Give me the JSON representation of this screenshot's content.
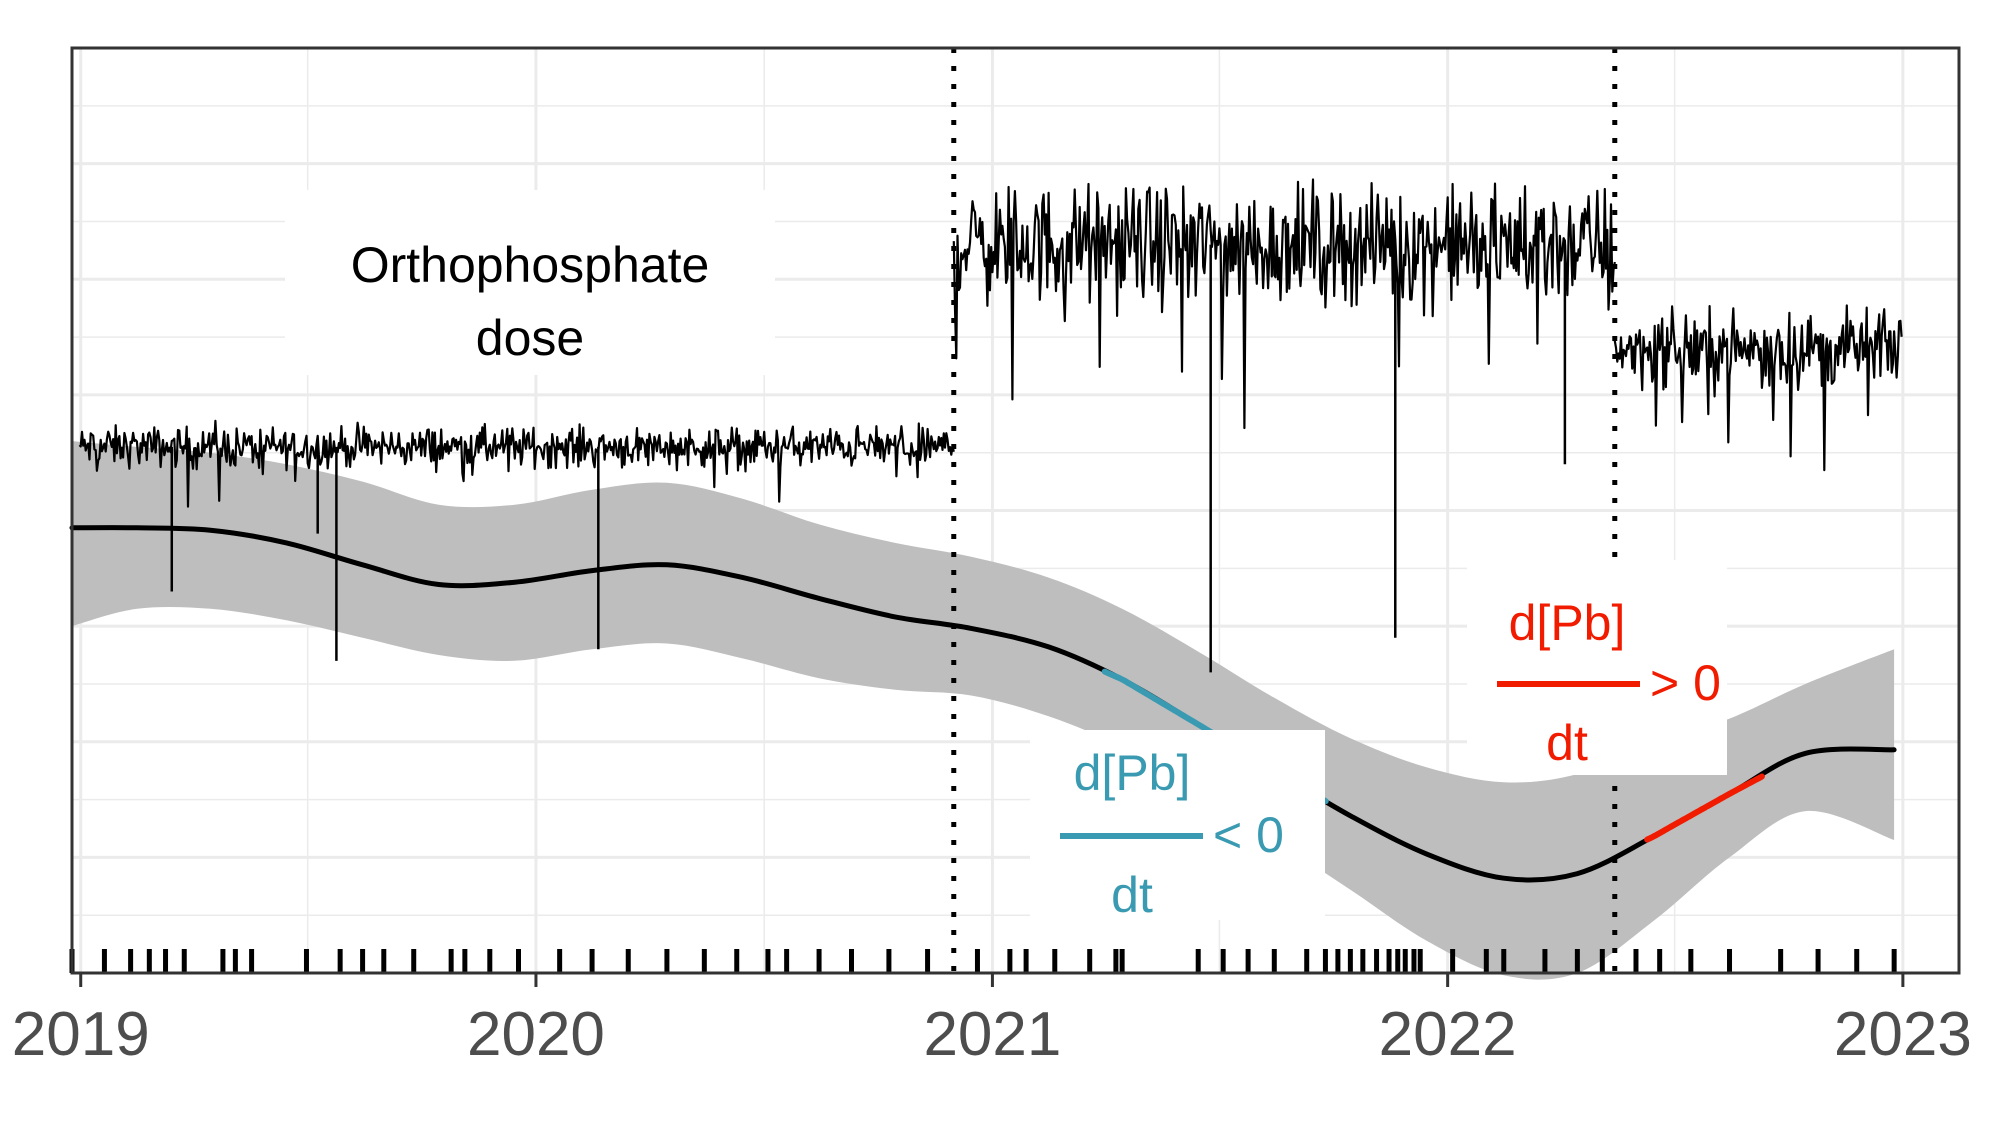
{
  "chart_data": {
    "type": "line",
    "title": "",
    "xlabel": "",
    "ylabel": "",
    "x_ticks": [
      "2019",
      "2020",
      "2021",
      "2022",
      "2023"
    ],
    "xlim": [
      "2018-12-25",
      "2023-02-15"
    ],
    "ylim": [
      0,
      8
    ],
    "grid": true,
    "colors": {
      "raw": "#000000",
      "smooth": "#000000",
      "ribbon": "#bebebe",
      "decreasing": "#3a9ab2",
      "increasing": "#f11b00",
      "vline": "#000000"
    },
    "vlines": [
      "2020-12-01",
      "2022-05-15"
    ],
    "orthophosphate_segments": [
      {
        "start": "2018-12-31",
        "end": "2020-12-01",
        "mean": 4.55,
        "sd": 0.12
      },
      {
        "start": "2020-12-01",
        "end": "2022-05-15",
        "mean": 6.3,
        "sd": 0.35
      },
      {
        "start": "2022-05-15",
        "end": "2022-12-31",
        "mean": 5.4,
        "sd": 0.22
      }
    ],
    "orthophosphate_dips": [
      {
        "date": "2019-03-15",
        "value": 3.3
      },
      {
        "date": "2019-07-10",
        "value": 3.8
      },
      {
        "date": "2019-07-25",
        "value": 2.7
      },
      {
        "date": "2020-02-20",
        "value": 2.8
      },
      {
        "date": "2021-06-25",
        "value": 2.6
      },
      {
        "date": "2021-11-20",
        "value": 2.9
      },
      {
        "date": "2022-04-05",
        "value": 4.4
      }
    ],
    "smooth": {
      "x": [
        "2018-12-25",
        "2019-02-15",
        "2019-04-15",
        "2019-06-15",
        "2019-08-15",
        "2019-10-15",
        "2019-12-15",
        "2020-02-15",
        "2020-04-15",
        "2020-06-15",
        "2020-08-15",
        "2020-10-15",
        "2020-12-15",
        "2021-02-15",
        "2021-04-15",
        "2021-06-15",
        "2021-08-15",
        "2021-10-15",
        "2021-12-15",
        "2022-02-15",
        "2022-04-15",
        "2022-06-15",
        "2022-08-15",
        "2022-10-15",
        "2022-12-25"
      ],
      "y": [
        3.85,
        3.85,
        3.83,
        3.72,
        3.53,
        3.36,
        3.38,
        3.48,
        3.53,
        3.42,
        3.24,
        3.08,
        2.98,
        2.82,
        2.54,
        2.15,
        1.75,
        1.36,
        1.03,
        0.82,
        0.86,
        1.18,
        1.55,
        1.9,
        1.93
      ],
      "lower": [
        3.0,
        3.15,
        3.15,
        3.05,
        2.9,
        2.75,
        2.7,
        2.8,
        2.85,
        2.72,
        2.55,
        2.45,
        2.4,
        2.22,
        1.95,
        1.55,
        1.15,
        0.72,
        0.28,
        -0.02,
        0.0,
        0.45,
        1.0,
        1.4,
        1.15
      ],
      "upper": [
        4.6,
        4.55,
        4.5,
        4.4,
        4.25,
        4.05,
        4.05,
        4.18,
        4.24,
        4.1,
        3.88,
        3.72,
        3.6,
        3.42,
        3.15,
        2.78,
        2.38,
        2.03,
        1.78,
        1.65,
        1.72,
        1.98,
        2.2,
        2.5,
        2.8
      ]
    },
    "decreasing_span": [
      "2021-04-01",
      "2021-09-25"
    ],
    "increasing_span": [
      "2022-06-10",
      "2022-09-10"
    ],
    "rug_dates": [
      "2018-12-25",
      "2019-01-20",
      "2019-02-10",
      "2019-02-25",
      "2019-03-10",
      "2019-03-25",
      "2019-04-25",
      "2019-05-05",
      "2019-05-18",
      "2019-07-01",
      "2019-07-28",
      "2019-08-15",
      "2019-09-01",
      "2019-09-25",
      "2019-10-25",
      "2019-11-05",
      "2019-11-25",
      "2019-12-18",
      "2020-01-20",
      "2020-02-15",
      "2020-03-15",
      "2020-04-15",
      "2020-05-15",
      "2020-06-10",
      "2020-07-05",
      "2020-07-20",
      "2020-08-15",
      "2020-09-10",
      "2020-10-10",
      "2020-11-10",
      "2020-12-20",
      "2021-01-15",
      "2021-01-28",
      "2021-02-20",
      "2021-03-20",
      "2021-04-10",
      "2021-04-15",
      "2021-06-15",
      "2021-07-05",
      "2021-07-25",
      "2021-08-15",
      "2021-09-10",
      "2021-09-25",
      "2021-10-05",
      "2021-10-15",
      "2021-10-25",
      "2021-11-05",
      "2021-11-15",
      "2021-11-22",
      "2021-11-28",
      "2021-12-05",
      "2021-12-10",
      "2022-01-05",
      "2022-02-01",
      "2022-02-15",
      "2022-03-20",
      "2022-04-15",
      "2022-05-05",
      "2022-06-01",
      "2022-06-20",
      "2022-07-15",
      "2022-08-15",
      "2022-09-25",
      "2022-10-25",
      "2022-11-25",
      "2022-12-25"
    ],
    "annotations": {
      "dose_line1": "Orthophosphate",
      "dose_line2": "dose",
      "neg_num": "d[Pb]",
      "neg_den": "dt",
      "neg_rel": "< 0",
      "pos_num": "d[Pb]",
      "pos_den": "dt",
      "pos_rel": "> 0"
    }
  }
}
